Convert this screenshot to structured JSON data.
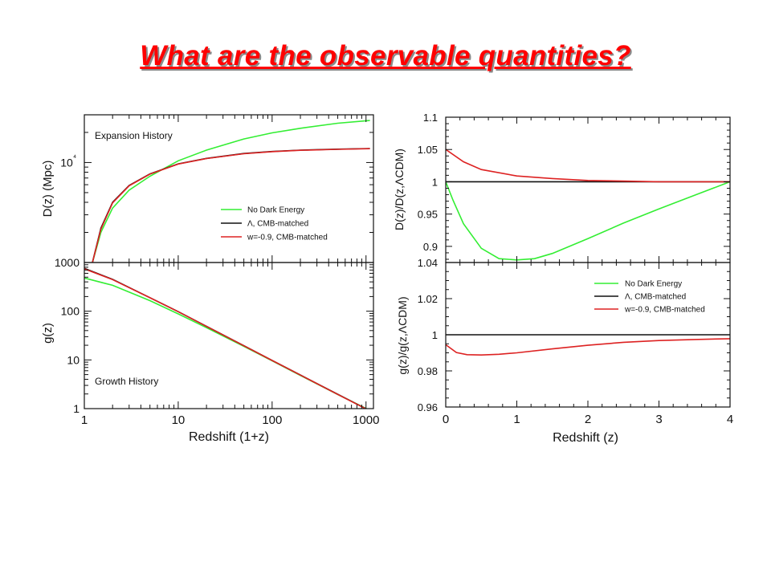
{
  "slide": {
    "title": "What are the observable quantities?"
  },
  "colors": {
    "title": "#ff0000",
    "no_dark_energy": "#33ee33",
    "lambda": "#111111",
    "w09": "#dd2222"
  },
  "chart_data": [
    {
      "id": "expansion",
      "type": "line",
      "annotation": "Expansion History",
      "ylabel": "D(z) (Mpc)",
      "xscale": "log",
      "yscale": "log",
      "xlim": [
        1,
        1200
      ],
      "ylim": [
        1000,
        30000
      ],
      "ytick_labels": {
        "10000": "10⁴"
      },
      "legend": {
        "placement": "lower-right",
        "entries": [
          "No Dark Energy",
          "Λ, CMB-matched",
          "w=-0.9, CMB-matched"
        ]
      },
      "series": [
        {
          "name": "No Dark Energy",
          "color": "#33ee33",
          "x": [
            1.22,
            1.5,
            2,
            3,
            5,
            10,
            20,
            50,
            100,
            200,
            500,
            1100
          ],
          "y": [
            1000,
            2000,
            3500,
            5300,
            7300,
            10400,
            13300,
            17200,
            19800,
            22000,
            24700,
            26300
          ]
        },
        {
          "name": "Λ, CMB-matched",
          "color": "#111111",
          "x": [
            1.22,
            1.5,
            2,
            3,
            5,
            10,
            20,
            50,
            100,
            200,
            500,
            1100
          ],
          "y": [
            1000,
            2200,
            4000,
            5900,
            7700,
            9700,
            11000,
            12300,
            12900,
            13300,
            13600,
            13800
          ]
        },
        {
          "name": "w=-0.9, CMB-matched",
          "color": "#dd2222",
          "x": [
            1.22,
            1.5,
            2,
            3,
            5,
            10,
            20,
            50,
            100,
            200,
            500,
            1100
          ],
          "y": [
            1000,
            2150,
            3950,
            5850,
            7650,
            9650,
            10950,
            12250,
            12850,
            13250,
            13550,
            13750
          ]
        }
      ]
    },
    {
      "id": "growth",
      "type": "line",
      "annotation": "Growth History",
      "xlabel": "Redshift (1+z)",
      "ylabel": "g(z)",
      "xscale": "log",
      "yscale": "log",
      "xlim": [
        1,
        1200
      ],
      "ylim": [
        1,
        1000
      ],
      "xticks": [
        1,
        10,
        100,
        1000
      ],
      "yticks": [
        1,
        10,
        100,
        1000
      ],
      "series": [
        {
          "name": "No Dark Energy",
          "color": "#33ee33",
          "x": [
            1,
            2,
            5,
            10,
            20,
            50,
            100,
            200,
            500,
            1100
          ],
          "y": [
            480,
            340,
            165,
            88,
            46,
            19,
            9.6,
            4.8,
            1.95,
            0.92
          ]
        },
        {
          "name": "Λ, CMB-matched",
          "color": "#111111",
          "x": [
            1,
            2,
            5,
            10,
            20,
            50,
            100,
            200,
            500,
            1100
          ],
          "y": [
            760,
            450,
            190,
            98,
            49,
            19.6,
            9.8,
            4.9,
            1.97,
            0.9
          ]
        },
        {
          "name": "w=-0.9, CMB-matched",
          "color": "#dd2222",
          "x": [
            1,
            2,
            5,
            10,
            20,
            50,
            100,
            200,
            500,
            1100
          ],
          "y": [
            740,
            445,
            189,
            97.5,
            48.8,
            19.5,
            9.75,
            4.88,
            1.96,
            0.9
          ]
        }
      ]
    },
    {
      "id": "distance-ratio",
      "type": "line",
      "ylabel": "D(z)/D(z,ΛCDM)",
      "xscale": "linear",
      "yscale": "linear",
      "xlim": [
        0,
        4
      ],
      "ylim": [
        0.875,
        1.1
      ],
      "yticks": [
        0.9,
        0.95,
        1,
        1.05,
        1.1
      ],
      "ytick_labels": [
        "0.9",
        "0.95",
        "1",
        "1.05",
        "1.1"
      ],
      "series": [
        {
          "name": "No Dark Energy",
          "color": "#33ee33",
          "x": [
            0,
            0.1,
            0.25,
            0.5,
            0.75,
            1,
            1.25,
            1.5,
            2,
            2.5,
            3,
            3.5,
            4
          ],
          "y": [
            1,
            0.972,
            0.935,
            0.897,
            0.881,
            0.879,
            0.881,
            0.889,
            0.912,
            0.936,
            0.958,
            0.979,
            1
          ]
        },
        {
          "name": "Λ, CMB-matched",
          "color": "#111111",
          "x": [
            0,
            4
          ],
          "y": [
            1,
            1
          ]
        },
        {
          "name": "w=-0.9, CMB-matched",
          "color": "#dd2222",
          "x": [
            0,
            0.25,
            0.5,
            1,
            1.5,
            2,
            2.5,
            3,
            4
          ],
          "y": [
            1.05,
            1.031,
            1.019,
            1.009,
            1.005,
            1.002,
            1.001,
            1,
            1
          ]
        }
      ]
    },
    {
      "id": "growth-ratio",
      "type": "line",
      "xlabel": "Redshift (z)",
      "ylabel": "g(z)/g(z,ΛCDM)",
      "xscale": "linear",
      "yscale": "linear",
      "xlim": [
        0,
        4
      ],
      "ylim": [
        0.96,
        1.04
      ],
      "xticks": [
        0,
        1,
        2,
        3,
        4
      ],
      "yticks": [
        0.96,
        0.98,
        1,
        1.02,
        1.04
      ],
      "ytick_labels": [
        "0.96",
        "0.98",
        "1",
        "1.02",
        "1.04"
      ],
      "legend": {
        "placement": "upper-right",
        "entries": [
          "No Dark Energy",
          "Λ, CMB-matched",
          "w=-0.9, CMB-matched"
        ]
      },
      "series": [
        {
          "name": "Λ, CMB-matched",
          "color": "#111111",
          "x": [
            0,
            4
          ],
          "y": [
            1,
            1
          ]
        },
        {
          "name": "w=-0.9, CMB-matched",
          "color": "#dd2222",
          "x": [
            0,
            0.15,
            0.3,
            0.5,
            0.75,
            1,
            1.5,
            2,
            2.5,
            3,
            3.5,
            4
          ],
          "y": [
            0.9945,
            0.9902,
            0.989,
            0.9888,
            0.9892,
            0.99,
            0.9922,
            0.9942,
            0.9958,
            0.9968,
            0.9974,
            0.9978
          ]
        }
      ]
    }
  ]
}
